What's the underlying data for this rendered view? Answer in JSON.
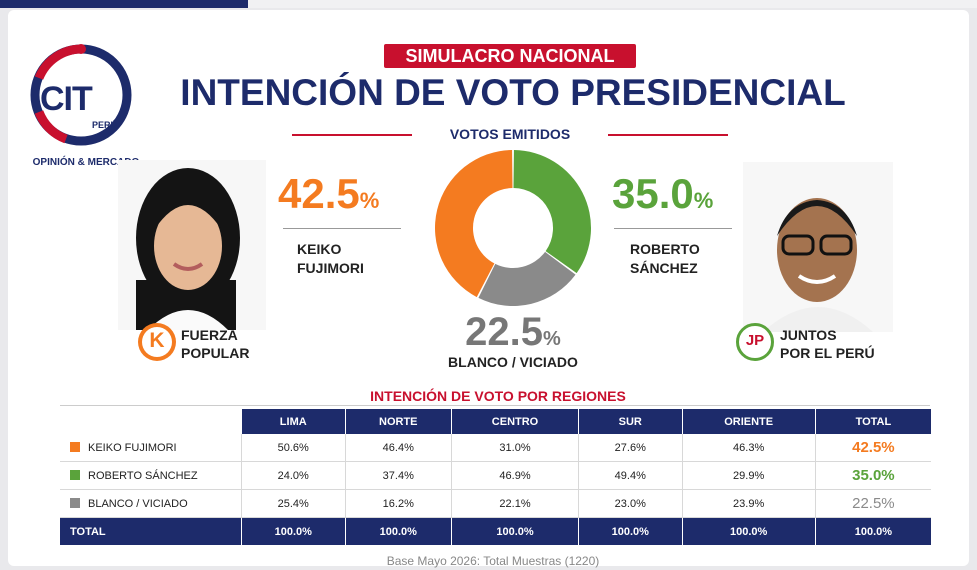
{
  "header": {
    "logo_text": "CIT",
    "logo_country": "PERÚ",
    "logo_subtitle": "OPINIÓN & MERCADO",
    "badge": "SIMULACRO NACIONAL",
    "title": "INTENCIÓN DE VOTO PRESIDENCIAL",
    "subtitle": "VOTOS EMITIDOS"
  },
  "candidates": {
    "keiko": {
      "pct": "42.5",
      "pct_sign": "%",
      "name_line1": "KEIKO",
      "name_line2": "FUJIMORI",
      "party_line1": "FUERZA",
      "party_line2": "POPULAR",
      "party_logo_letter": "K"
    },
    "roberto": {
      "pct": "35.0",
      "pct_sign": "%",
      "name_line1": "ROBERTO",
      "name_line2": "SÁNCHEZ",
      "party_line1": "JUNTOS",
      "party_line2": "POR EL PERÚ",
      "party_logo_letter": "JP"
    },
    "blanco": {
      "pct": "22.5",
      "pct_sign": "%",
      "label": "BLANCO / VICIADO"
    }
  },
  "colors": {
    "keiko": "#f47b20",
    "roberto": "#5aa33b",
    "blanco": "#8a8a8a",
    "navy": "#1d2b6b",
    "red": "#c8102e"
  },
  "chart_data": [
    {
      "type": "pie",
      "title": "VOTOS EMITIDOS",
      "categories": [
        "KEIKO FUJIMORI",
        "ROBERTO SÁNCHEZ",
        "BLANCO / VICIADO"
      ],
      "values": [
        42.5,
        35.0,
        22.5
      ]
    },
    {
      "type": "table",
      "title": "INTENCIÓN DE VOTO POR REGIONES",
      "columns": [
        "LIMA",
        "NORTE",
        "CENTRO",
        "SUR",
        "ORIENTE",
        "TOTAL"
      ],
      "rows": [
        {
          "label": "KEIKO FUJIMORI",
          "values": [
            "50.6%",
            "46.4%",
            "31.0%",
            "27.6%",
            "46.3%",
            "42.5%"
          ]
        },
        {
          "label": "ROBERTO SÁNCHEZ",
          "values": [
            "24.0%",
            "37.4%",
            "46.9%",
            "49.4%",
            "29.9%",
            "35.0%"
          ]
        },
        {
          "label": "BLANCO / VICIADO",
          "values": [
            "25.4%",
            "16.2%",
            "22.1%",
            "23.0%",
            "23.9%",
            "22.5%"
          ]
        },
        {
          "label": "TOTAL",
          "values": [
            "100.0%",
            "100.0%",
            "100.0%",
            "100.0%",
            "100.0%",
            "100.0%"
          ]
        }
      ]
    }
  ],
  "footer": "Base Mayo 2026: Total Muestras (1220)"
}
